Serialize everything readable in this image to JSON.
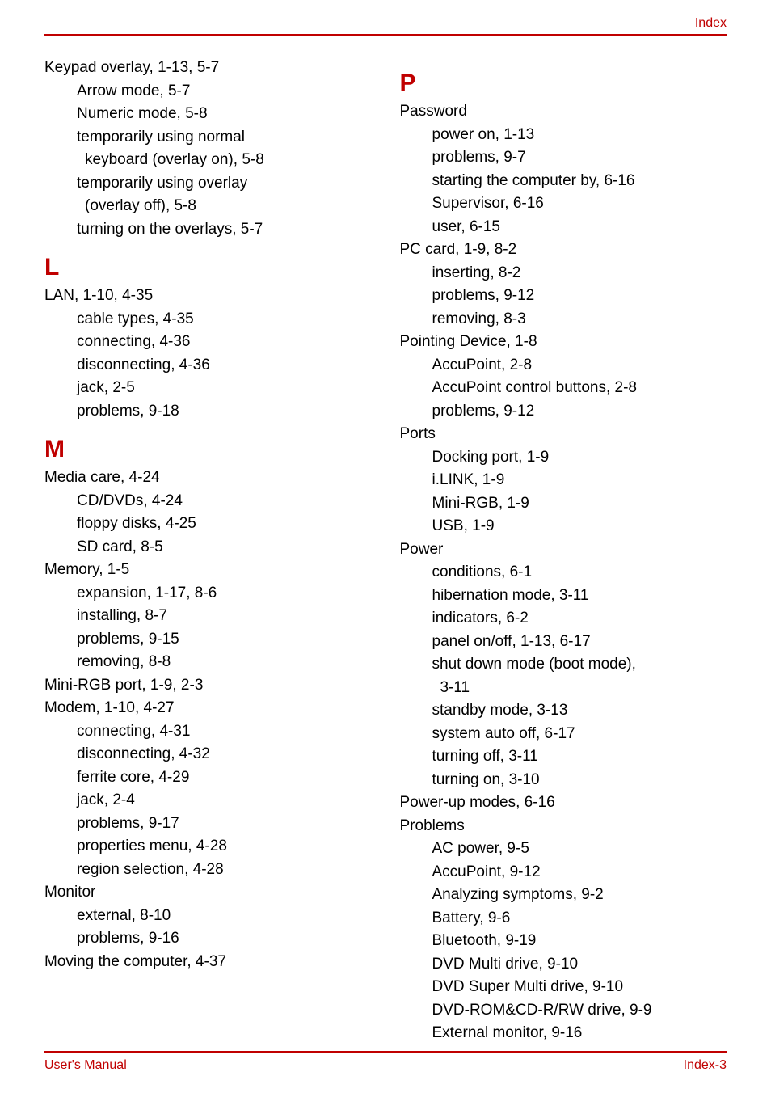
{
  "header": {
    "label": "Index"
  },
  "footer": {
    "left": "User's Manual",
    "right": "Index-3"
  },
  "colors": {
    "accent": "#c00000",
    "text": "#000000",
    "background": "#ffffff"
  },
  "leftColumn": {
    "groups": [
      {
        "entries": [
          {
            "text": "Keypad overlay, 1-13, 5-7",
            "level": 0
          },
          {
            "text": "Arrow mode, 5-7",
            "level": 1
          },
          {
            "text": "Numeric mode, 5-8",
            "level": 1
          },
          {
            "text": "temporarily using normal",
            "level": 1
          },
          {
            "text": "keyboard (overlay on), 5-8",
            "level": 2
          },
          {
            "text": "temporarily using overlay",
            "level": 1
          },
          {
            "text": "(overlay off), 5-8",
            "level": 2
          },
          {
            "text": "turning on the overlays, 5-7",
            "level": 1
          }
        ]
      },
      {
        "letter": "L",
        "entries": [
          {
            "text": "LAN, 1-10, 4-35",
            "level": 0
          },
          {
            "text": "cable types, 4-35",
            "level": 1
          },
          {
            "text": "connecting, 4-36",
            "level": 1
          },
          {
            "text": "disconnecting, 4-36",
            "level": 1
          },
          {
            "text": "jack, 2-5",
            "level": 1
          },
          {
            "text": "problems, 9-18",
            "level": 1
          }
        ]
      },
      {
        "letter": "M",
        "entries": [
          {
            "text": "Media care, 4-24",
            "level": 0
          },
          {
            "text": "CD/DVDs, 4-24",
            "level": 1
          },
          {
            "text": "floppy disks, 4-25",
            "level": 1
          },
          {
            "text": "SD card, 8-5",
            "level": 1
          },
          {
            "text": "Memory, 1-5",
            "level": 0
          },
          {
            "text": "expansion, 1-17, 8-6",
            "level": 1
          },
          {
            "text": "installing, 8-7",
            "level": 1
          },
          {
            "text": "problems, 9-15",
            "level": 1
          },
          {
            "text": "removing, 8-8",
            "level": 1
          },
          {
            "text": "Mini-RGB port, 1-9, 2-3",
            "level": 0
          },
          {
            "text": "Modem, 1-10, 4-27",
            "level": 0
          },
          {
            "text": "connecting, 4-31",
            "level": 1
          },
          {
            "text": "disconnecting, 4-32",
            "level": 1
          },
          {
            "text": "ferrite core, 4-29",
            "level": 1
          },
          {
            "text": "jack, 2-4",
            "level": 1
          },
          {
            "text": "problems, 9-17",
            "level": 1
          },
          {
            "text": "properties menu, 4-28",
            "level": 1
          },
          {
            "text": "region selection, 4-28",
            "level": 1
          },
          {
            "text": "Monitor",
            "level": 0
          },
          {
            "text": "external, 8-10",
            "level": 1
          },
          {
            "text": "problems, 9-16",
            "level": 1
          },
          {
            "text": "Moving the computer, 4-37",
            "level": 0
          }
        ]
      }
    ]
  },
  "rightColumn": {
    "groups": [
      {
        "letter": "P",
        "entries": [
          {
            "text": "Password",
            "level": 0
          },
          {
            "text": "power on, 1-13",
            "level": 1
          },
          {
            "text": "problems, 9-7",
            "level": 1
          },
          {
            "text": "starting the computer by, 6-16",
            "level": 1
          },
          {
            "text": "Supervisor, 6-16",
            "level": 1
          },
          {
            "text": "user, 6-15",
            "level": 1
          },
          {
            "text": "PC card, 1-9, 8-2",
            "level": 0
          },
          {
            "text": "inserting, 8-2",
            "level": 1
          },
          {
            "text": "problems, 9-12",
            "level": 1
          },
          {
            "text": "removing, 8-3",
            "level": 1
          },
          {
            "text": "Pointing Device, 1-8",
            "level": 0
          },
          {
            "text": "AccuPoint, 2-8",
            "level": 1
          },
          {
            "text": "AccuPoint control buttons, 2-8",
            "level": 1
          },
          {
            "text": "problems, 9-12",
            "level": 1
          },
          {
            "text": "Ports",
            "level": 0
          },
          {
            "text": "Docking port, 1-9",
            "level": 1
          },
          {
            "text": "i.LINK, 1-9",
            "level": 1
          },
          {
            "text": "Mini-RGB, 1-9",
            "level": 1
          },
          {
            "text": "USB, 1-9",
            "level": 1
          },
          {
            "text": "Power",
            "level": 0
          },
          {
            "text": "conditions, 6-1",
            "level": 1
          },
          {
            "text": "hibernation mode, 3-11",
            "level": 1
          },
          {
            "text": "indicators, 6-2",
            "level": 1
          },
          {
            "text": "panel on/off, 1-13, 6-17",
            "level": 1
          },
          {
            "text": "shut down mode (boot mode),",
            "level": 1
          },
          {
            "text": "3-11",
            "level": 2
          },
          {
            "text": "standby mode, 3-13",
            "level": 1
          },
          {
            "text": "system auto off, 6-17",
            "level": 1
          },
          {
            "text": "turning off, 3-11",
            "level": 1
          },
          {
            "text": "turning on, 3-10",
            "level": 1
          },
          {
            "text": "Power-up modes, 6-16",
            "level": 0
          },
          {
            "text": "Problems",
            "level": 0
          },
          {
            "text": "AC power, 9-5",
            "level": 1
          },
          {
            "text": "AccuPoint, 9-12",
            "level": 1
          },
          {
            "text": "Analyzing symptoms, 9-2",
            "level": 1
          },
          {
            "text": "Battery, 9-6",
            "level": 1
          },
          {
            "text": "Bluetooth, 9-19",
            "level": 1
          },
          {
            "text": "DVD Multi drive, 9-10",
            "level": 1
          },
          {
            "text": "DVD Super Multi drive, 9-10",
            "level": 1
          },
          {
            "text": "DVD-ROM&CD-R/RW drive, 9-9",
            "level": 1
          },
          {
            "text": "External monitor, 9-16",
            "level": 1
          }
        ]
      }
    ]
  }
}
